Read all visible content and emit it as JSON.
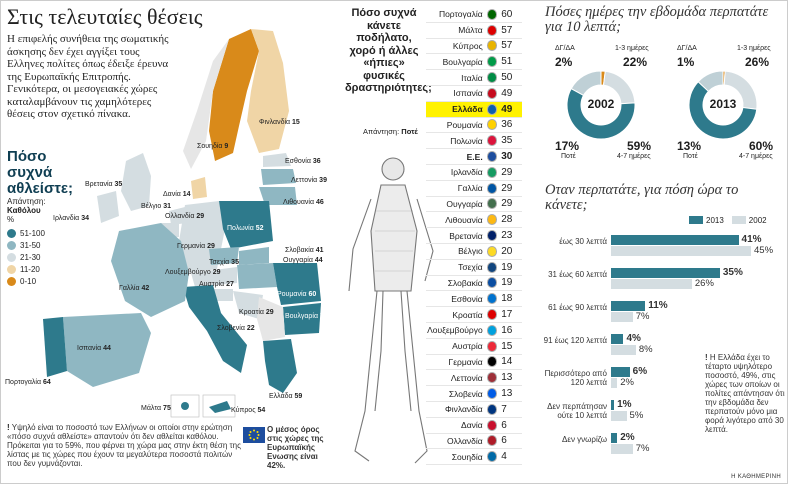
{
  "header": {
    "title": "Στις τελευταίες θέσεις",
    "intro": "Η επιφελής συνήθεια της σωματικής άσκησης δεν έχει αγγίξει τους Ελληνες πολίτες όπως έδειξε έρευνα της Ευρωπαϊκής Επιτροπής. Γενικότερα, οι μεσογειακές χώρες καταλαμβάνουν τις χαμηλότερες θέσεις στον σχετικό πίνακα."
  },
  "map": {
    "heading": "Πόσο συχνά αθλείστε;",
    "answer_label": "Απάντηση:",
    "answer_value": "Καθόλου",
    "unit": "%",
    "legend": [
      {
        "label": "51-100",
        "color": "#2e7a8c"
      },
      {
        "label": "31-50",
        "color": "#8fb7c2"
      },
      {
        "label": "21-30",
        "color": "#d4dde1"
      },
      {
        "label": "11-20",
        "color": "#f0d5a6"
      },
      {
        "label": "0-10",
        "color": "#d98a1a"
      }
    ],
    "countries": [
      {
        "name": "Φινλανδία",
        "value": "15"
      },
      {
        "name": "Σουηδία",
        "value": "9"
      },
      {
        "name": "Δανία",
        "value": "14"
      },
      {
        "name": "Εσθονία",
        "value": "36"
      },
      {
        "name": "Λεττονία",
        "value": "39"
      },
      {
        "name": "Λιθουανία",
        "value": "46"
      },
      {
        "name": "Βρετανία",
        "value": "35"
      },
      {
        "name": "Ιρλανδία",
        "value": "34"
      },
      {
        "name": "Βέλγιο",
        "value": "31"
      },
      {
        "name": "Ολλανδία",
        "value": "29"
      },
      {
        "name": "Γερμανία",
        "value": "29"
      },
      {
        "name": "Πολωνία",
        "value": "52"
      },
      {
        "name": "Τσεχία",
        "value": "35"
      },
      {
        "name": "Σλοβακία",
        "value": "41"
      },
      {
        "name": "Ουγγαρία",
        "value": "44"
      },
      {
        "name": "Λουξεμβούργο",
        "value": "29"
      },
      {
        "name": "Αυστρία",
        "value": "27"
      },
      {
        "name": "Γαλλία",
        "value": "42"
      },
      {
        "name": "Σλοβενία",
        "value": "22"
      },
      {
        "name": "Κροατία",
        "value": "29"
      },
      {
        "name": "Ρουμανία",
        "value": "60"
      },
      {
        "name": "Βουλγαρία",
        "value": "78"
      },
      {
        "name": "Ιταλία",
        "value": "60"
      },
      {
        "name": "Ισπανία",
        "value": "44"
      },
      {
        "name": "Πορτογαλία",
        "value": "64"
      },
      {
        "name": "Ελλάδα",
        "value": "59"
      },
      {
        "name": "Μάλτα",
        "value": "75"
      },
      {
        "name": "Κύπρος",
        "value": "54"
      }
    ],
    "note": "Υψηλό είναι το ποσοστό των Ελλήνων οι οποίοι στην ερώτηση «πόσο συχνά αθλείστε» απαντούν ότι δεν αθλείται καθόλου. Πρόκειται για το 59%, που φέρνει τη χώρα μας στην έκτη θέση της λίστας με τις χώρες που έχουν τα μεγαλύτερα ποσοστά πολιτών που δεν γυμνάζονται.",
    "eu_note": "Ο μέσος όρος στις χώρες της Ευρωπαϊκής Ενωσης είναι 42%."
  },
  "ranking": {
    "question": "Πόσο συχνά κάνετε ποδήλατο, χορό ή άλλες «ήπιες» φυσικές δραστηριότητες;",
    "answer_label": "Απάντηση:",
    "answer_value": "Ποτέ",
    "highlight_color": "#fff200"
  },
  "walk_days": {
    "title": "Πόσες ημέρες την εβδομάδα περπατάτε για 10 λεπτά;",
    "cat_labels": {
      "na": "ΔΓ/ΔΑ",
      "d13": "1-3 ημέρες",
      "never": "Ποτέ",
      "d47": "4-7 ημέρες"
    },
    "donuts": [
      {
        "year": "2002",
        "na": "2%",
        "d13": "22%",
        "never": "17%",
        "d47": "59%"
      },
      {
        "year": "2013",
        "na": "1%",
        "d13": "26%",
        "never": "13%",
        "d47": "60%"
      }
    ]
  },
  "walk_time": {
    "title": "Οταν περπατάτε, για πόση ώρα το κάνετε;",
    "legend": [
      {
        "label": "2013",
        "color": "#2e7a8c"
      },
      {
        "label": "2002",
        "color": "#d4dde1"
      }
    ],
    "note": "Η Ελλάδα έχει το τέταρτο υψηλότερο ποσοστό, 49%, στις χώρες των οποίων οι πολίτες απάντησαν ότι την εβδομάδα δεν περπατούν μόνο μια φορά λιγότερο από 30 λεπτά."
  },
  "footer": {
    "source": "Η ΚΑΘΗΜΕΡΙΝΗ"
  },
  "chart_data": [
    {
      "type": "bar",
      "title": "Πόσο συχνά κάνετε ποδήλατο, χορό ή άλλες «ήπιες» φυσικές δραστηριότητες;",
      "categories": [
        "Πορτογαλία",
        "Μάλτα",
        "Κύπρος",
        "Βουλγαρία",
        "Ιταλία",
        "Ισπανία",
        "Ελλάδα",
        "Ρουμανία",
        "Πολωνία",
        "Ε.Ε.",
        "Ιρλανδία",
        "Γαλλία",
        "Ουγγαρία",
        "Λιθουανία",
        "Βρετανία",
        "Βέλγιο",
        "Τσεχία",
        "Σλοβακία",
        "Εσθονία",
        "Κροατία",
        "Λουξεμβούργο",
        "Αυστρία",
        "Γερμανία",
        "Λεττονία",
        "Σλοβενία",
        "Φινλανδία",
        "Δανία",
        "Ολλανδία",
        "Σουηδία"
      ],
      "series": [
        {
          "name": "",
          "values": [
            60,
            57,
            57,
            51,
            50,
            49,
            49,
            36,
            35,
            30,
            29,
            29,
            29,
            28,
            23,
            20,
            19,
            19,
            18,
            17,
            16,
            15,
            14,
            13,
            13,
            7,
            6,
            6,
            4
          ]
        }
      ]
    },
    {
      "type": "pie",
      "title": "2002",
      "categories": [
        "ΔΓ/ΔΑ",
        "1-3 ημέρες",
        "4-7 ημέρες",
        "Ποτέ"
      ],
      "values": [
        2,
        22,
        59,
        17
      ]
    },
    {
      "type": "pie",
      "title": "2013",
      "categories": [
        "ΔΓ/ΔΑ",
        "1-3 ημέρες",
        "4-7 ημέρες",
        "Ποτέ"
      ],
      "values": [
        1,
        26,
        60,
        13
      ]
    },
    {
      "type": "bar",
      "title": "Οταν περπατάτε, για πόση ώρα το κάνετε;",
      "categories": [
        "έως 30 λεπτά",
        "31 έως 60 λεπτά",
        "61 έως 90 λεπτά",
        "91 έως 120 λεπτά",
        "Περισσότερο από 120 λεπτά",
        "Δεν περπάτησαν ούτε 10 λεπτά",
        "Δεν γνωρίζω"
      ],
      "series": [
        {
          "name": "2013",
          "values": [
            41,
            35,
            11,
            4,
            6,
            1,
            2
          ]
        },
        {
          "name": "2002",
          "values": [
            45,
            26,
            7,
            8,
            2,
            5,
            7
          ]
        }
      ],
      "value_suffix": "%"
    }
  ]
}
